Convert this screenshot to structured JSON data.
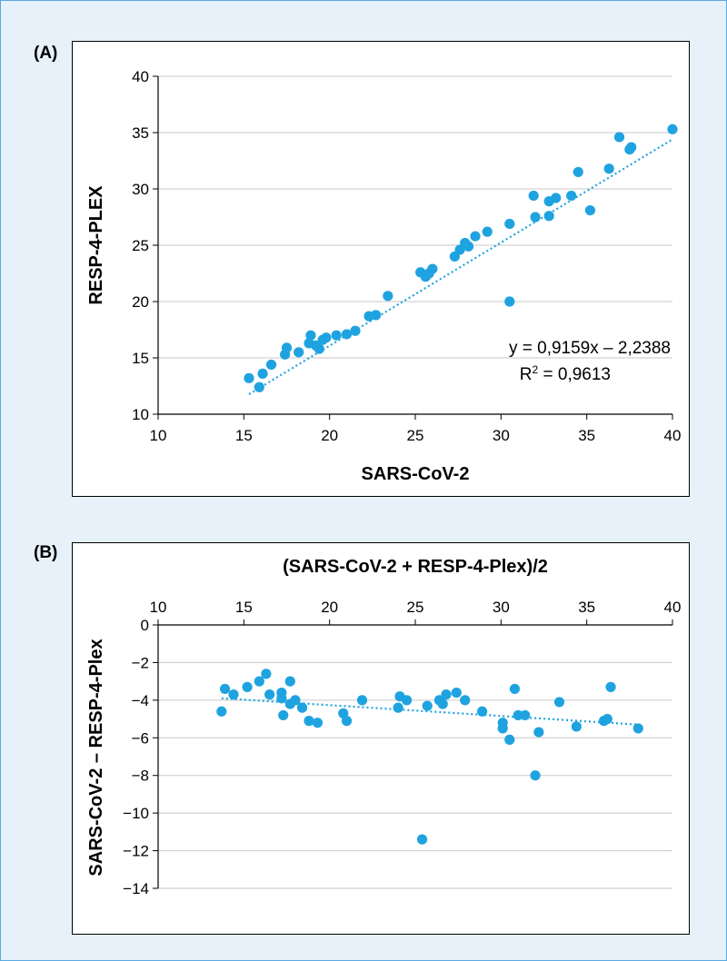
{
  "chart_data": [
    {
      "panel_label": "(A)",
      "type": "scatter",
      "xlabel": "SARS-CoV-2",
      "ylabel": "RESP-4-PLEX",
      "xlim": [
        10,
        40
      ],
      "ylim": [
        10,
        40
      ],
      "xticks": [
        "10",
        "15",
        "20",
        "25",
        "30",
        "35",
        "40"
      ],
      "yticks": [
        "10",
        "15",
        "20",
        "25",
        "30",
        "35",
        "40"
      ],
      "grid": "horizontal",
      "marker_color": "#1fa3e0",
      "trendline": {
        "style": "dotted",
        "slope": 0.9159,
        "intercept": -2.2388,
        "x_range": [
          15.3,
          40
        ]
      },
      "equation": "y = 0,9159x – 2,2388",
      "r2_prefix": "R",
      "r2_sup": "2",
      "r2_value": " = 0,9613",
      "points": [
        [
          15.3,
          13.2
        ],
        [
          15.9,
          12.4
        ],
        [
          16.1,
          13.6
        ],
        [
          16.6,
          14.4
        ],
        [
          17.4,
          15.3
        ],
        [
          17.5,
          15.9
        ],
        [
          18.2,
          15.5
        ],
        [
          18.8,
          16.3
        ],
        [
          18.9,
          17.0
        ],
        [
          19.2,
          16.1
        ],
        [
          19.4,
          15.8
        ],
        [
          19.6,
          16.6
        ],
        [
          19.8,
          16.8
        ],
        [
          20.4,
          17.0
        ],
        [
          21.0,
          17.1
        ],
        [
          21.5,
          17.4
        ],
        [
          22.3,
          18.7
        ],
        [
          22.7,
          18.8
        ],
        [
          23.4,
          20.5
        ],
        [
          25.3,
          22.6
        ],
        [
          25.6,
          22.2
        ],
        [
          25.8,
          22.5
        ],
        [
          26.0,
          22.9
        ],
        [
          27.3,
          24.0
        ],
        [
          27.6,
          24.6
        ],
        [
          27.9,
          25.2
        ],
        [
          28.1,
          24.9
        ],
        [
          28.5,
          25.8
        ],
        [
          29.2,
          26.2
        ],
        [
          30.5,
          26.9
        ],
        [
          30.5,
          20.0
        ],
        [
          31.9,
          29.4
        ],
        [
          32.0,
          27.5
        ],
        [
          32.8,
          27.6
        ],
        [
          32.8,
          28.9
        ],
        [
          33.2,
          29.2
        ],
        [
          34.1,
          29.4
        ],
        [
          34.5,
          31.5
        ],
        [
          35.2,
          28.1
        ],
        [
          36.3,
          31.8
        ],
        [
          36.9,
          34.6
        ],
        [
          37.5,
          33.5
        ],
        [
          37.6,
          33.7
        ],
        [
          40.0,
          35.3
        ]
      ]
    },
    {
      "panel_label": "(B)",
      "type": "scatter",
      "xlabel": "(SARS-CoV-2 + RESP-4-Plex)/2",
      "ylabel": "SARS-CoV-2 – RESP-4-Plex",
      "xlim": [
        10,
        40
      ],
      "ylim": [
        -14,
        0
      ],
      "xticks": [
        "10",
        "15",
        "20",
        "25",
        "30",
        "35",
        "40"
      ],
      "yticks": [
        "0",
        "−2",
        "−4",
        "−6",
        "−8",
        "−10",
        "−12",
        "−14"
      ],
      "grid": "horizontal",
      "x_axis_position": "top",
      "marker_color": "#1fa3e0",
      "trendline": {
        "style": "dotted",
        "x": [
          13.7,
          38.0
        ],
        "y": [
          -3.9,
          -5.3
        ]
      },
      "points": [
        [
          13.7,
          -4.6
        ],
        [
          13.9,
          -3.4
        ],
        [
          14.4,
          -3.7
        ],
        [
          15.2,
          -3.3
        ],
        [
          15.9,
          -3.0
        ],
        [
          16.3,
          -2.6
        ],
        [
          16.5,
          -3.7
        ],
        [
          17.2,
          -3.6
        ],
        [
          17.2,
          -3.9
        ],
        [
          17.3,
          -4.8
        ],
        [
          17.7,
          -4.2
        ],
        [
          17.7,
          -3.0
        ],
        [
          18.0,
          -4.0
        ],
        [
          18.4,
          -4.4
        ],
        [
          18.8,
          -5.1
        ],
        [
          19.3,
          -5.2
        ],
        [
          20.8,
          -4.7
        ],
        [
          21.0,
          -5.1
        ],
        [
          21.9,
          -4.0
        ],
        [
          24.0,
          -4.4
        ],
        [
          24.1,
          -3.8
        ],
        [
          24.5,
          -4.0
        ],
        [
          25.4,
          -11.4
        ],
        [
          25.7,
          -4.3
        ],
        [
          26.4,
          -4.0
        ],
        [
          26.6,
          -4.2
        ],
        [
          26.8,
          -3.7
        ],
        [
          27.4,
          -3.6
        ],
        [
          27.9,
          -4.0
        ],
        [
          28.9,
          -4.6
        ],
        [
          30.1,
          -5.2
        ],
        [
          30.1,
          -5.5
        ],
        [
          30.5,
          -6.1
        ],
        [
          30.8,
          -3.4
        ],
        [
          31.0,
          -4.8
        ],
        [
          31.4,
          -4.8
        ],
        [
          32.0,
          -8.0
        ],
        [
          32.2,
          -5.7
        ],
        [
          33.4,
          -4.1
        ],
        [
          34.4,
          -5.4
        ],
        [
          36.0,
          -5.1
        ],
        [
          36.2,
          -5.0
        ],
        [
          36.4,
          -3.3
        ],
        [
          38.0,
          -5.5
        ]
      ]
    }
  ]
}
